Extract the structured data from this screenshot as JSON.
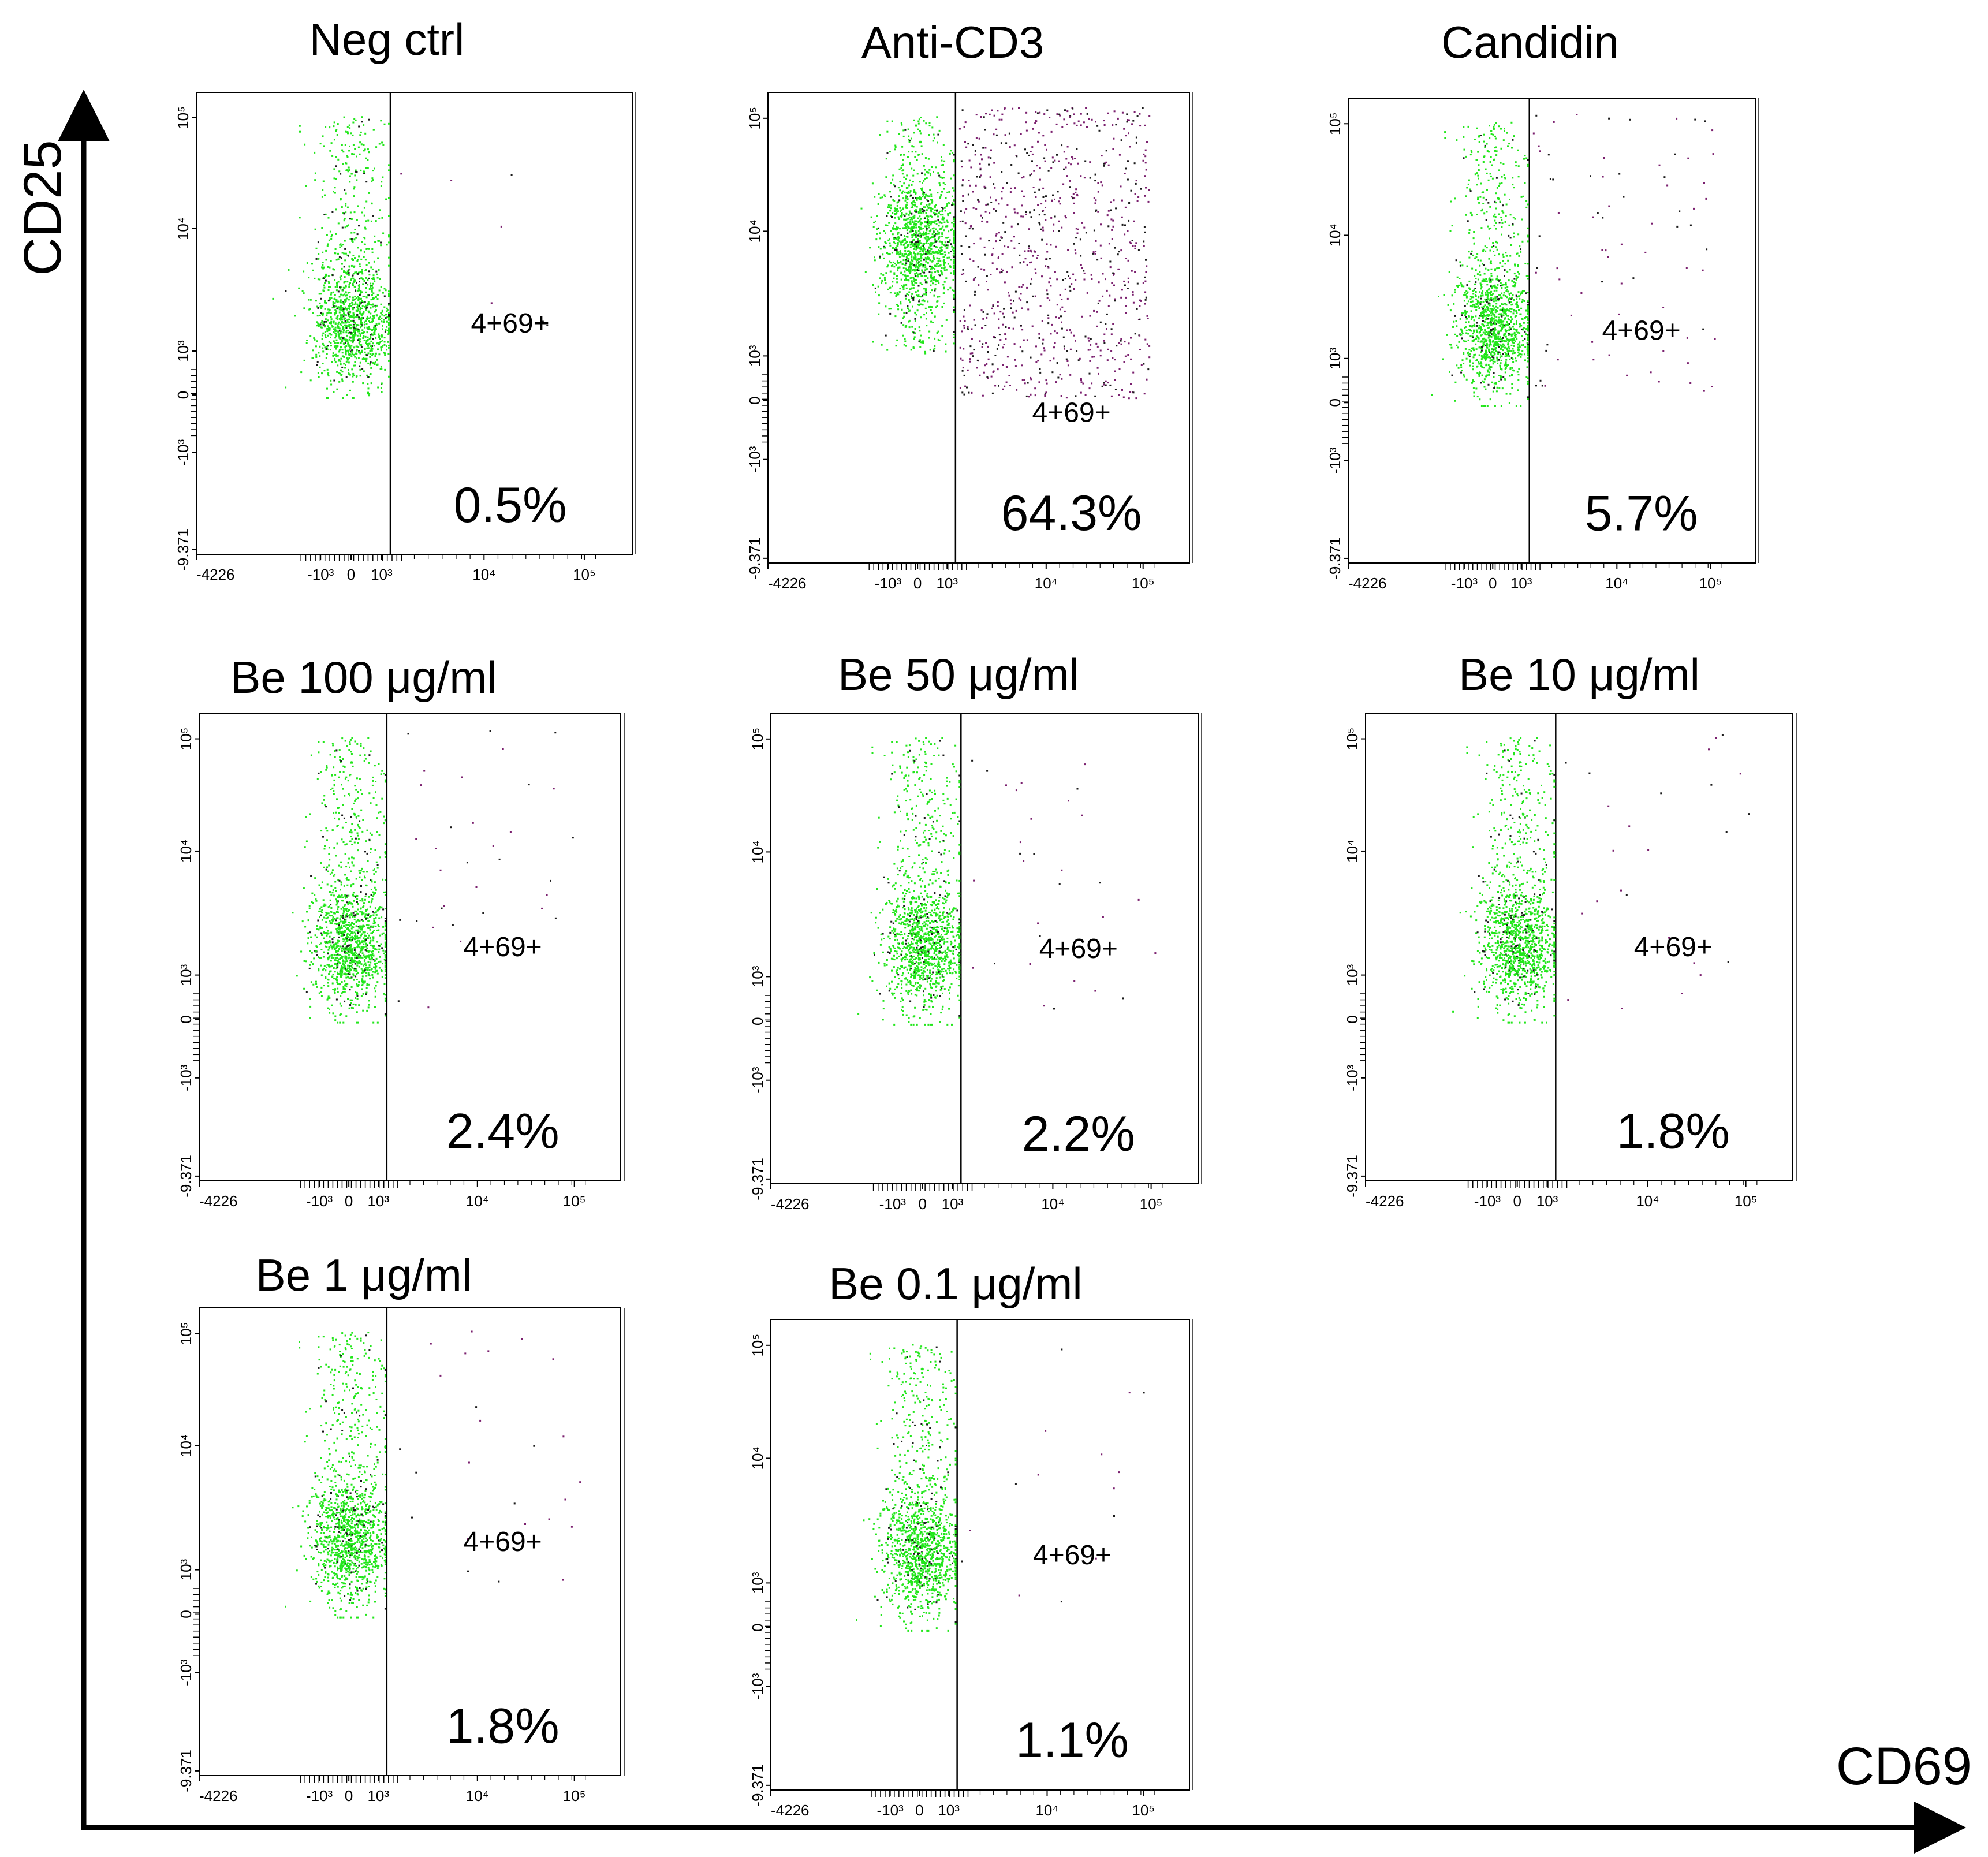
{
  "figure": {
    "y_axis_label": "CD25",
    "x_axis_label": "CD69"
  },
  "colors": {
    "negative_population": "#22e61b",
    "positive_population": "#7a1f6e",
    "dense_dots": "#1a1a1a",
    "axes": "#000000"
  },
  "chart_data": [
    {
      "type": "scatter",
      "title": "Neg ctrl",
      "gate_label": "4+69+",
      "percent_label": "0.5%",
      "x_ticks": [
        "-4226",
        "-10³",
        "0",
        "10³",
        "10⁴",
        "10⁵"
      ],
      "y_ticks": [
        "-9.371",
        "-10³",
        "0",
        "10³",
        "10⁴",
        "10⁵"
      ],
      "positive_fraction": 0.005,
      "negative_center": [
        0,
        1800
      ],
      "scale": "logicle",
      "xlabel": "",
      "ylabel": ""
    },
    {
      "type": "scatter",
      "title": "Anti-CD3",
      "gate_label": "4+69+",
      "percent_label": "64.3%",
      "x_ticks": [
        "-4226",
        "-10³",
        "0",
        "10³",
        "10⁴",
        "10⁵"
      ],
      "y_ticks": [
        "-9.371",
        "-10³",
        "0",
        "10³",
        "10⁴",
        "10⁵"
      ],
      "positive_fraction": 0.643,
      "negative_center": [
        0,
        8000
      ],
      "scale": "logicle",
      "xlabel": "",
      "ylabel": ""
    },
    {
      "type": "scatter",
      "title": "Candidin",
      "gate_label": "4+69+",
      "percent_label": "5.7%",
      "x_ticks": [
        "-4226",
        "-10³",
        "0",
        "10³",
        "10⁴",
        "10⁵"
      ],
      "y_ticks": [
        "-9.371",
        "-10³",
        "0",
        "10³",
        "10⁴",
        "10⁵"
      ],
      "positive_fraction": 0.057,
      "negative_center": [
        0,
        1400
      ],
      "scale": "logicle",
      "xlabel": "",
      "ylabel": ""
    },
    {
      "type": "scatter",
      "title": "Be 100 μg/ml",
      "gate_label": "4+69+",
      "percent_label": "2.4%",
      "x_ticks": [
        "-4226",
        "-10³",
        "0",
        "10³",
        "10⁴",
        "10⁵"
      ],
      "y_ticks": [
        "-9.371",
        "-10³",
        "0",
        "10³",
        "10⁴",
        "10⁵"
      ],
      "positive_fraction": 0.024,
      "negative_center": [
        0,
        1800
      ],
      "scale": "logicle",
      "xlabel": "",
      "ylabel": ""
    },
    {
      "type": "scatter",
      "title": "Be 50 μg/ml",
      "gate_label": "4+69+",
      "percent_label": "2.2%",
      "x_ticks": [
        "-4226",
        "-10³",
        "0",
        "10³",
        "10⁴",
        "10⁵"
      ],
      "y_ticks": [
        "-9.371",
        "-10³",
        "0",
        "10³",
        "10⁴",
        "10⁵"
      ],
      "positive_fraction": 0.022,
      "negative_center": [
        0,
        1800
      ],
      "scale": "logicle",
      "xlabel": "",
      "ylabel": ""
    },
    {
      "type": "scatter",
      "title": "Be 10 μg/ml",
      "gate_label": "4+69+",
      "percent_label": "1.8%",
      "x_ticks": [
        "-4226",
        "-10³",
        "0",
        "10³",
        "10⁴",
        "10⁵"
      ],
      "y_ticks": [
        "-9.371",
        "-10³",
        "0",
        "10³",
        "10⁴",
        "10⁵"
      ],
      "positive_fraction": 0.018,
      "negative_center": [
        0,
        1800
      ],
      "scale": "logicle",
      "xlabel": "",
      "ylabel": ""
    },
    {
      "type": "scatter",
      "title": "Be 1 μg/ml",
      "gate_label": "4+69+",
      "percent_label": "1.8%",
      "x_ticks": [
        "-4226",
        "-10³",
        "0",
        "10³",
        "10⁴",
        "10⁵"
      ],
      "y_ticks": [
        "-9.371",
        "-10³",
        "0",
        "10³",
        "10⁴",
        "10⁵"
      ],
      "positive_fraction": 0.018,
      "negative_center": [
        0,
        1800
      ],
      "scale": "logicle",
      "xlabel": "",
      "ylabel": ""
    },
    {
      "type": "scatter",
      "title": "Be 0.1 μg/ml",
      "gate_label": "4+69+",
      "percent_label": "1.1%",
      "x_ticks": [
        "-4226",
        "-10³",
        "0",
        "10³",
        "10⁴",
        "10⁵"
      ],
      "y_ticks": [
        "-9.371",
        "-10³",
        "0",
        "10³",
        "10⁴",
        "10⁵"
      ],
      "positive_fraction": 0.011,
      "negative_center": [
        0,
        2200
      ],
      "scale": "logicle",
      "xlabel": "",
      "ylabel": ""
    }
  ]
}
